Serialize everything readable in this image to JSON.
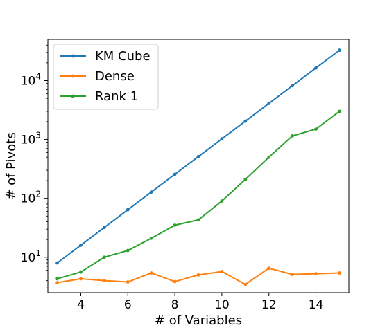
{
  "chart_data": {
    "type": "line",
    "xlabel": "# of Variables",
    "ylabel": "# of Pivots",
    "yscale": "log",
    "xlim": [
      2.6,
      15.4
    ],
    "ylim": [
      2.5,
      50000
    ],
    "xticks": [
      4,
      6,
      8,
      10,
      12,
      14
    ],
    "xtick_labels": [
      "4",
      "6",
      "8",
      "10",
      "12",
      "14"
    ],
    "yticks": [
      10,
      100,
      1000,
      10000
    ],
    "ytick_labels": [
      {
        "base": "10",
        "exp": "1"
      },
      {
        "base": "10",
        "exp": "2"
      },
      {
        "base": "10",
        "exp": "3"
      },
      {
        "base": "10",
        "exp": "4"
      }
    ],
    "grid": false,
    "legend_position": "top-left",
    "x": [
      3,
      4,
      5,
      6,
      7,
      8,
      9,
      10,
      11,
      12,
      13,
      14,
      15
    ],
    "series": [
      {
        "name": "KM Cube",
        "color": "#1f77b4",
        "values": [
          8,
          16,
          32,
          64,
          128,
          256,
          512,
          1024,
          2048,
          4096,
          8192,
          16384,
          32768
        ]
      },
      {
        "name": "Dense",
        "color": "#ff7f0e",
        "values": [
          3.7,
          4.3,
          4.0,
          3.8,
          5.4,
          3.85,
          5.0,
          5.7,
          3.45,
          6.5,
          5.1,
          5.25,
          5.4
        ]
      },
      {
        "name": "Rank 1",
        "color": "#2ca02c",
        "values": [
          4.3,
          5.6,
          10,
          13,
          21,
          35,
          43,
          90,
          210,
          500,
          1150,
          1500,
          3000
        ]
      }
    ]
  }
}
